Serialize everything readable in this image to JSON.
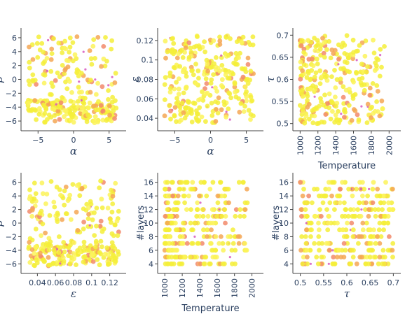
{
  "chart_data": [
    {
      "id": "p1",
      "type": "scatter",
      "xlabel": "α",
      "ylabel": "β",
      "xlim": [
        -7,
        7
      ],
      "ylim": [
        -7,
        7
      ],
      "xticks": [
        -5,
        0,
        5
      ],
      "xtick_labels": [
        "−5",
        "0",
        "5"
      ],
      "yticks": [
        -6,
        -4,
        -2,
        0,
        2,
        4,
        6
      ],
      "ytick_labels": [
        "−6",
        "−4",
        "−2",
        "0",
        "2",
        "4",
        "6"
      ],
      "grid": false,
      "n_points": 300
    },
    {
      "id": "p2",
      "type": "scatter",
      "xlabel": "α",
      "ylabel": "ε",
      "xlim": [
        -7,
        7
      ],
      "ylim": [
        0.03,
        0.13
      ],
      "xticks": [
        -5,
        0,
        5
      ],
      "xtick_labels": [
        "−5",
        "0",
        "5"
      ],
      "yticks": [
        0.04,
        0.06,
        0.08,
        0.1,
        0.12
      ],
      "ytick_labels": [
        "0.04",
        "0.06",
        "0.08",
        "0.1",
        "0.12"
      ],
      "grid": false,
      "n_points": 300
    },
    {
      "id": "p3",
      "type": "scatter",
      "xlabel": "Temperature",
      "ylabel": "τ",
      "xlim": [
        950,
        2100
      ],
      "ylim": [
        0.49,
        0.71
      ],
      "xticks": [
        1000,
        1200,
        1400,
        1600,
        1800,
        2000
      ],
      "xtick_labels": [
        "1000",
        "1200",
        "1400",
        "1600",
        "1800",
        "2000"
      ],
      "yticks": [
        0.5,
        0.55,
        0.6,
        0.65,
        0.7
      ],
      "ytick_labels": [
        "0.5",
        "0.55",
        "0.6",
        "0.65",
        "0.7"
      ],
      "grid": false,
      "n_points": 300
    },
    {
      "id": "p4",
      "type": "scatter",
      "xlabel": "ε",
      "ylabel": "β",
      "xlim": [
        0.025,
        0.135
      ],
      "ylim": [
        -7,
        7
      ],
      "xticks": [
        0.04,
        0.06,
        0.08,
        0.1,
        0.12
      ],
      "xtick_labels": [
        "0.04",
        "0.06",
        "0.08",
        "0.1",
        "0.12"
      ],
      "yticks": [
        -6,
        -4,
        -2,
        0,
        2,
        4,
        6
      ],
      "ytick_labels": [
        "−6",
        "−4",
        "−2",
        "0",
        "2",
        "4",
        "6"
      ],
      "grid": false,
      "n_points": 300
    },
    {
      "id": "p5",
      "type": "scatter",
      "xlabel": "Temperature",
      "ylabel": "#layers",
      "xlim": [
        950,
        2100
      ],
      "ylim": [
        3,
        17
      ],
      "xticks": [
        1000,
        1200,
        1400,
        1600,
        1800,
        2000
      ],
      "xtick_labels": [
        "1000",
        "1200",
        "1400",
        "1600",
        "1800",
        "2000"
      ],
      "yticks": [
        4,
        6,
        8,
        10,
        12,
        14,
        16
      ],
      "ytick_labels": [
        "4",
        "6",
        "8",
        "10",
        "12",
        "14",
        "16"
      ],
      "grid": false,
      "n_points": 300
    },
    {
      "id": "p6",
      "type": "scatter",
      "xlabel": "τ",
      "ylabel": "#layers",
      "xlim": [
        0.49,
        0.71
      ],
      "ylim": [
        3,
        17
      ],
      "xticks": [
        0.5,
        0.55,
        0.6,
        0.65,
        0.7
      ],
      "xtick_labels": [
        "0.5",
        "0.55",
        "0.6",
        "0.65",
        "0.7"
      ],
      "yticks": [
        4,
        6,
        8,
        10,
        12,
        14,
        16
      ],
      "ytick_labels": [
        "4",
        "6",
        "8",
        "10",
        "12",
        "14",
        "16"
      ],
      "grid": false,
      "n_points": 300
    }
  ],
  "colors": {
    "marker_main": "#f5ee3a",
    "marker_light": "#fbf35a",
    "marker_orange": "#f4a755",
    "marker_salmon": "#f28a6b",
    "marker_magenta": "#d659c0",
    "axis": "#444444",
    "text": "#2a3f5f"
  }
}
